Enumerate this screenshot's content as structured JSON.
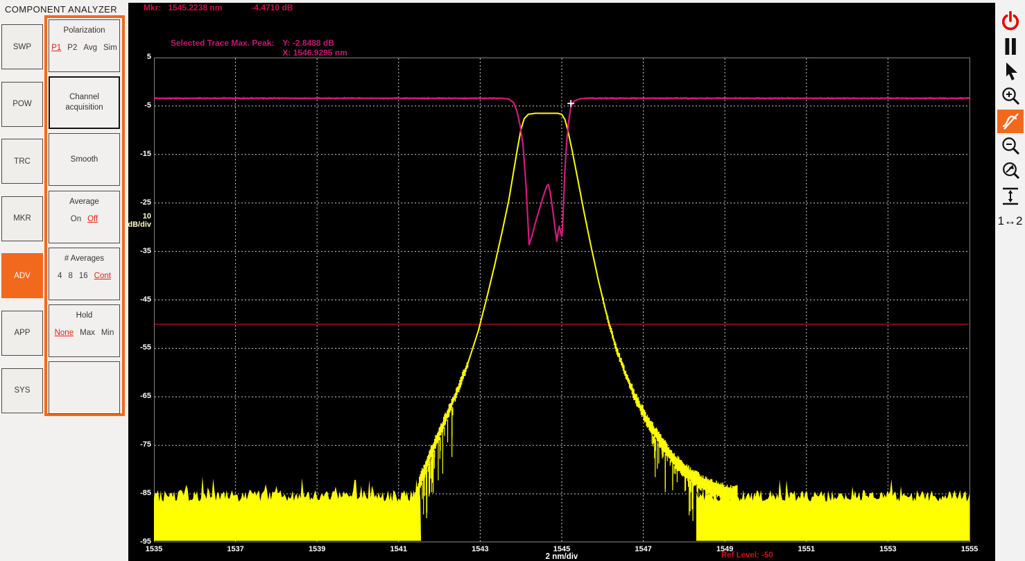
{
  "app": {
    "title": "COMPONENT ANALYZER"
  },
  "sidebar": {
    "items": [
      {
        "label": "SWP",
        "active": false
      },
      {
        "label": "POW",
        "active": false
      },
      {
        "label": "TRC",
        "active": false
      },
      {
        "label": "MKR",
        "active": false
      },
      {
        "label": "ADV",
        "active": true
      },
      {
        "label": "APP",
        "active": false
      },
      {
        "label": "SYS",
        "active": false
      }
    ]
  },
  "panels": [
    {
      "name": "polarization",
      "title": "Polarization",
      "options": [
        "P1",
        "P2",
        "Avg",
        "Sim"
      ],
      "selected": "P1"
    },
    {
      "name": "channel-acquisition",
      "lines": [
        "Channel",
        "acquisition"
      ],
      "strong_border": true
    },
    {
      "name": "smooth",
      "lines": [
        "Smooth"
      ]
    },
    {
      "name": "average",
      "title": "Average",
      "options": [
        "On",
        "Off"
      ],
      "selected": "Off"
    },
    {
      "name": "num-averages",
      "title": "# Averages",
      "options": [
        "4",
        "8",
        "16",
        "Cont"
      ],
      "selected": "Cont"
    },
    {
      "name": "hold",
      "title": "Hold",
      "options": [
        "None",
        "Max",
        "Min"
      ],
      "selected": "None"
    },
    {
      "name": "empty",
      "lines": []
    }
  ],
  "readouts": {
    "marker": {
      "label": "Mkr:",
      "wavelength": "1545.2238 nm",
      "level": "-4.4710 dB"
    },
    "selected_trace": {
      "label": "Selected Trace Max. Peak:",
      "y": "Y: -2.8488 dB",
      "x": "X: 1546.9295 nm"
    },
    "ref_level": "Ref Level: -50"
  },
  "toolbar": {
    "icons": [
      "power",
      "pause",
      "cursor",
      "zoom-in",
      "marker-tool",
      "zoom-out",
      "zoom-reset",
      "fit-vertical",
      "scale-1-2"
    ],
    "active_icon": "marker-tool",
    "scale_label": "1↔2"
  },
  "colors": {
    "accent_orange": "#f2691d",
    "selected_red": "#e4200e",
    "trace_magenta": "#d6197e",
    "trace_yellow": "#ffff00",
    "ref_line_red": "#c81414",
    "marker_text": "#c5134b",
    "peak_text": "#c01a73",
    "grid": "#cfcfcf",
    "axis_unit_yellow": "#ffffc8"
  },
  "chart_data": {
    "type": "line",
    "title": "",
    "xlabel": "2 nm/div",
    "x_div_label": "2 nm/div",
    "y_div_value": "10",
    "y_div_unit": "dB/div",
    "xlim": [
      1535,
      1555
    ],
    "ylim": [
      -95,
      5
    ],
    "x_ticks": [
      1535,
      1537,
      1539,
      1541,
      1543,
      1545,
      1547,
      1549,
      1551,
      1553,
      1555
    ],
    "y_ticks": [
      5,
      -5,
      -15,
      -25,
      -35,
      -45,
      -55,
      -65,
      -75,
      -85,
      -95
    ],
    "grid": true,
    "ref_level": -50,
    "marker_point": {
      "x": 1545.2238,
      "y": -4.471
    },
    "series": [
      {
        "name": "filter-bandpass-yellow",
        "color": "#ffff00",
        "points": [
          [
            1541.42,
            -86
          ],
          [
            1541.55,
            -82
          ],
          [
            1541.75,
            -77.5
          ],
          [
            1541.95,
            -73.5
          ],
          [
            1542.2,
            -68.5
          ],
          [
            1542.45,
            -63.5
          ],
          [
            1542.7,
            -58
          ],
          [
            1542.95,
            -51.5
          ],
          [
            1543.15,
            -45
          ],
          [
            1543.35,
            -38
          ],
          [
            1543.55,
            -30.5
          ],
          [
            1543.7,
            -24.5
          ],
          [
            1543.82,
            -18.5
          ],
          [
            1543.92,
            -13.5
          ],
          [
            1544.0,
            -9.8
          ],
          [
            1544.08,
            -7.6
          ],
          [
            1544.18,
            -6.7
          ],
          [
            1544.35,
            -6.5
          ],
          [
            1544.9,
            -6.5
          ],
          [
            1545.0,
            -6.7
          ],
          [
            1545.08,
            -7.8
          ],
          [
            1545.15,
            -10
          ],
          [
            1545.25,
            -14
          ],
          [
            1545.38,
            -19.5
          ],
          [
            1545.55,
            -27
          ],
          [
            1545.72,
            -34
          ],
          [
            1545.9,
            -41
          ],
          [
            1546.1,
            -48
          ],
          [
            1546.3,
            -54
          ],
          [
            1546.55,
            -60
          ],
          [
            1546.8,
            -65
          ],
          [
            1547.1,
            -70
          ],
          [
            1547.45,
            -74.5
          ],
          [
            1547.8,
            -78.5
          ],
          [
            1548.2,
            -81.5
          ],
          [
            1548.6,
            -83.5
          ],
          [
            1549.1,
            -85
          ]
        ]
      },
      {
        "name": "p1-insertion-loss-magenta",
        "color": "#d6197e",
        "flat_noise": [
          {
            "from": 1535,
            "to": 1543.52,
            "level": -3.4,
            "amp": 0.16
          },
          {
            "from": 1545.58,
            "to": 1555,
            "level": -3.4,
            "amp": 0.16
          }
        ],
        "points": [
          [
            1535,
            -3.4
          ],
          [
            1543.55,
            -3.4
          ],
          [
            1543.7,
            -3.55
          ],
          [
            1543.82,
            -4.3
          ],
          [
            1543.9,
            -6
          ],
          [
            1543.98,
            -9
          ],
          [
            1544.05,
            -13
          ],
          [
            1544.12,
            -21
          ],
          [
            1544.2,
            -33.6
          ],
          [
            1544.27,
            -31.8
          ],
          [
            1544.35,
            -29.2
          ],
          [
            1544.45,
            -26.3
          ],
          [
            1544.55,
            -23.6
          ],
          [
            1544.63,
            -21.6
          ],
          [
            1544.67,
            -21.2
          ],
          [
            1544.72,
            -22.8
          ],
          [
            1544.78,
            -26.5
          ],
          [
            1544.84,
            -30.5
          ],
          [
            1544.88,
            -32.9
          ],
          [
            1544.91,
            -31
          ],
          [
            1544.94,
            -29.8
          ],
          [
            1544.97,
            -30.9
          ],
          [
            1545.0,
            -31.9
          ],
          [
            1545.02,
            -30
          ],
          [
            1545.05,
            -24
          ],
          [
            1545.08,
            -18
          ],
          [
            1545.12,
            -12.5
          ],
          [
            1545.17,
            -8.2
          ],
          [
            1545.22,
            -5.3
          ],
          [
            1545.3,
            -4
          ],
          [
            1545.45,
            -3.5
          ],
          [
            1545.6,
            -3.4
          ],
          [
            1555,
            -3.4
          ]
        ]
      }
    ],
    "noise": {
      "floor_top_db": -85.4,
      "floor_bottom_db": -94.7,
      "amp_db": 1.2,
      "regions": [
        [
          1535,
          1541.55
        ],
        [
          1548.3,
          1555
        ]
      ],
      "skirt_bands": [
        [
          1541.4,
          1542.7
        ],
        [
          1546.0,
          1549.3
        ]
      ],
      "spike_clusters": [
        {
          "from": 1541.33,
          "to": 1542.35,
          "count": 34,
          "max_len_db": 9
        },
        {
          "from": 1547.2,
          "to": 1549.45,
          "count": 58,
          "max_len_db": 7
        }
      ]
    }
  }
}
